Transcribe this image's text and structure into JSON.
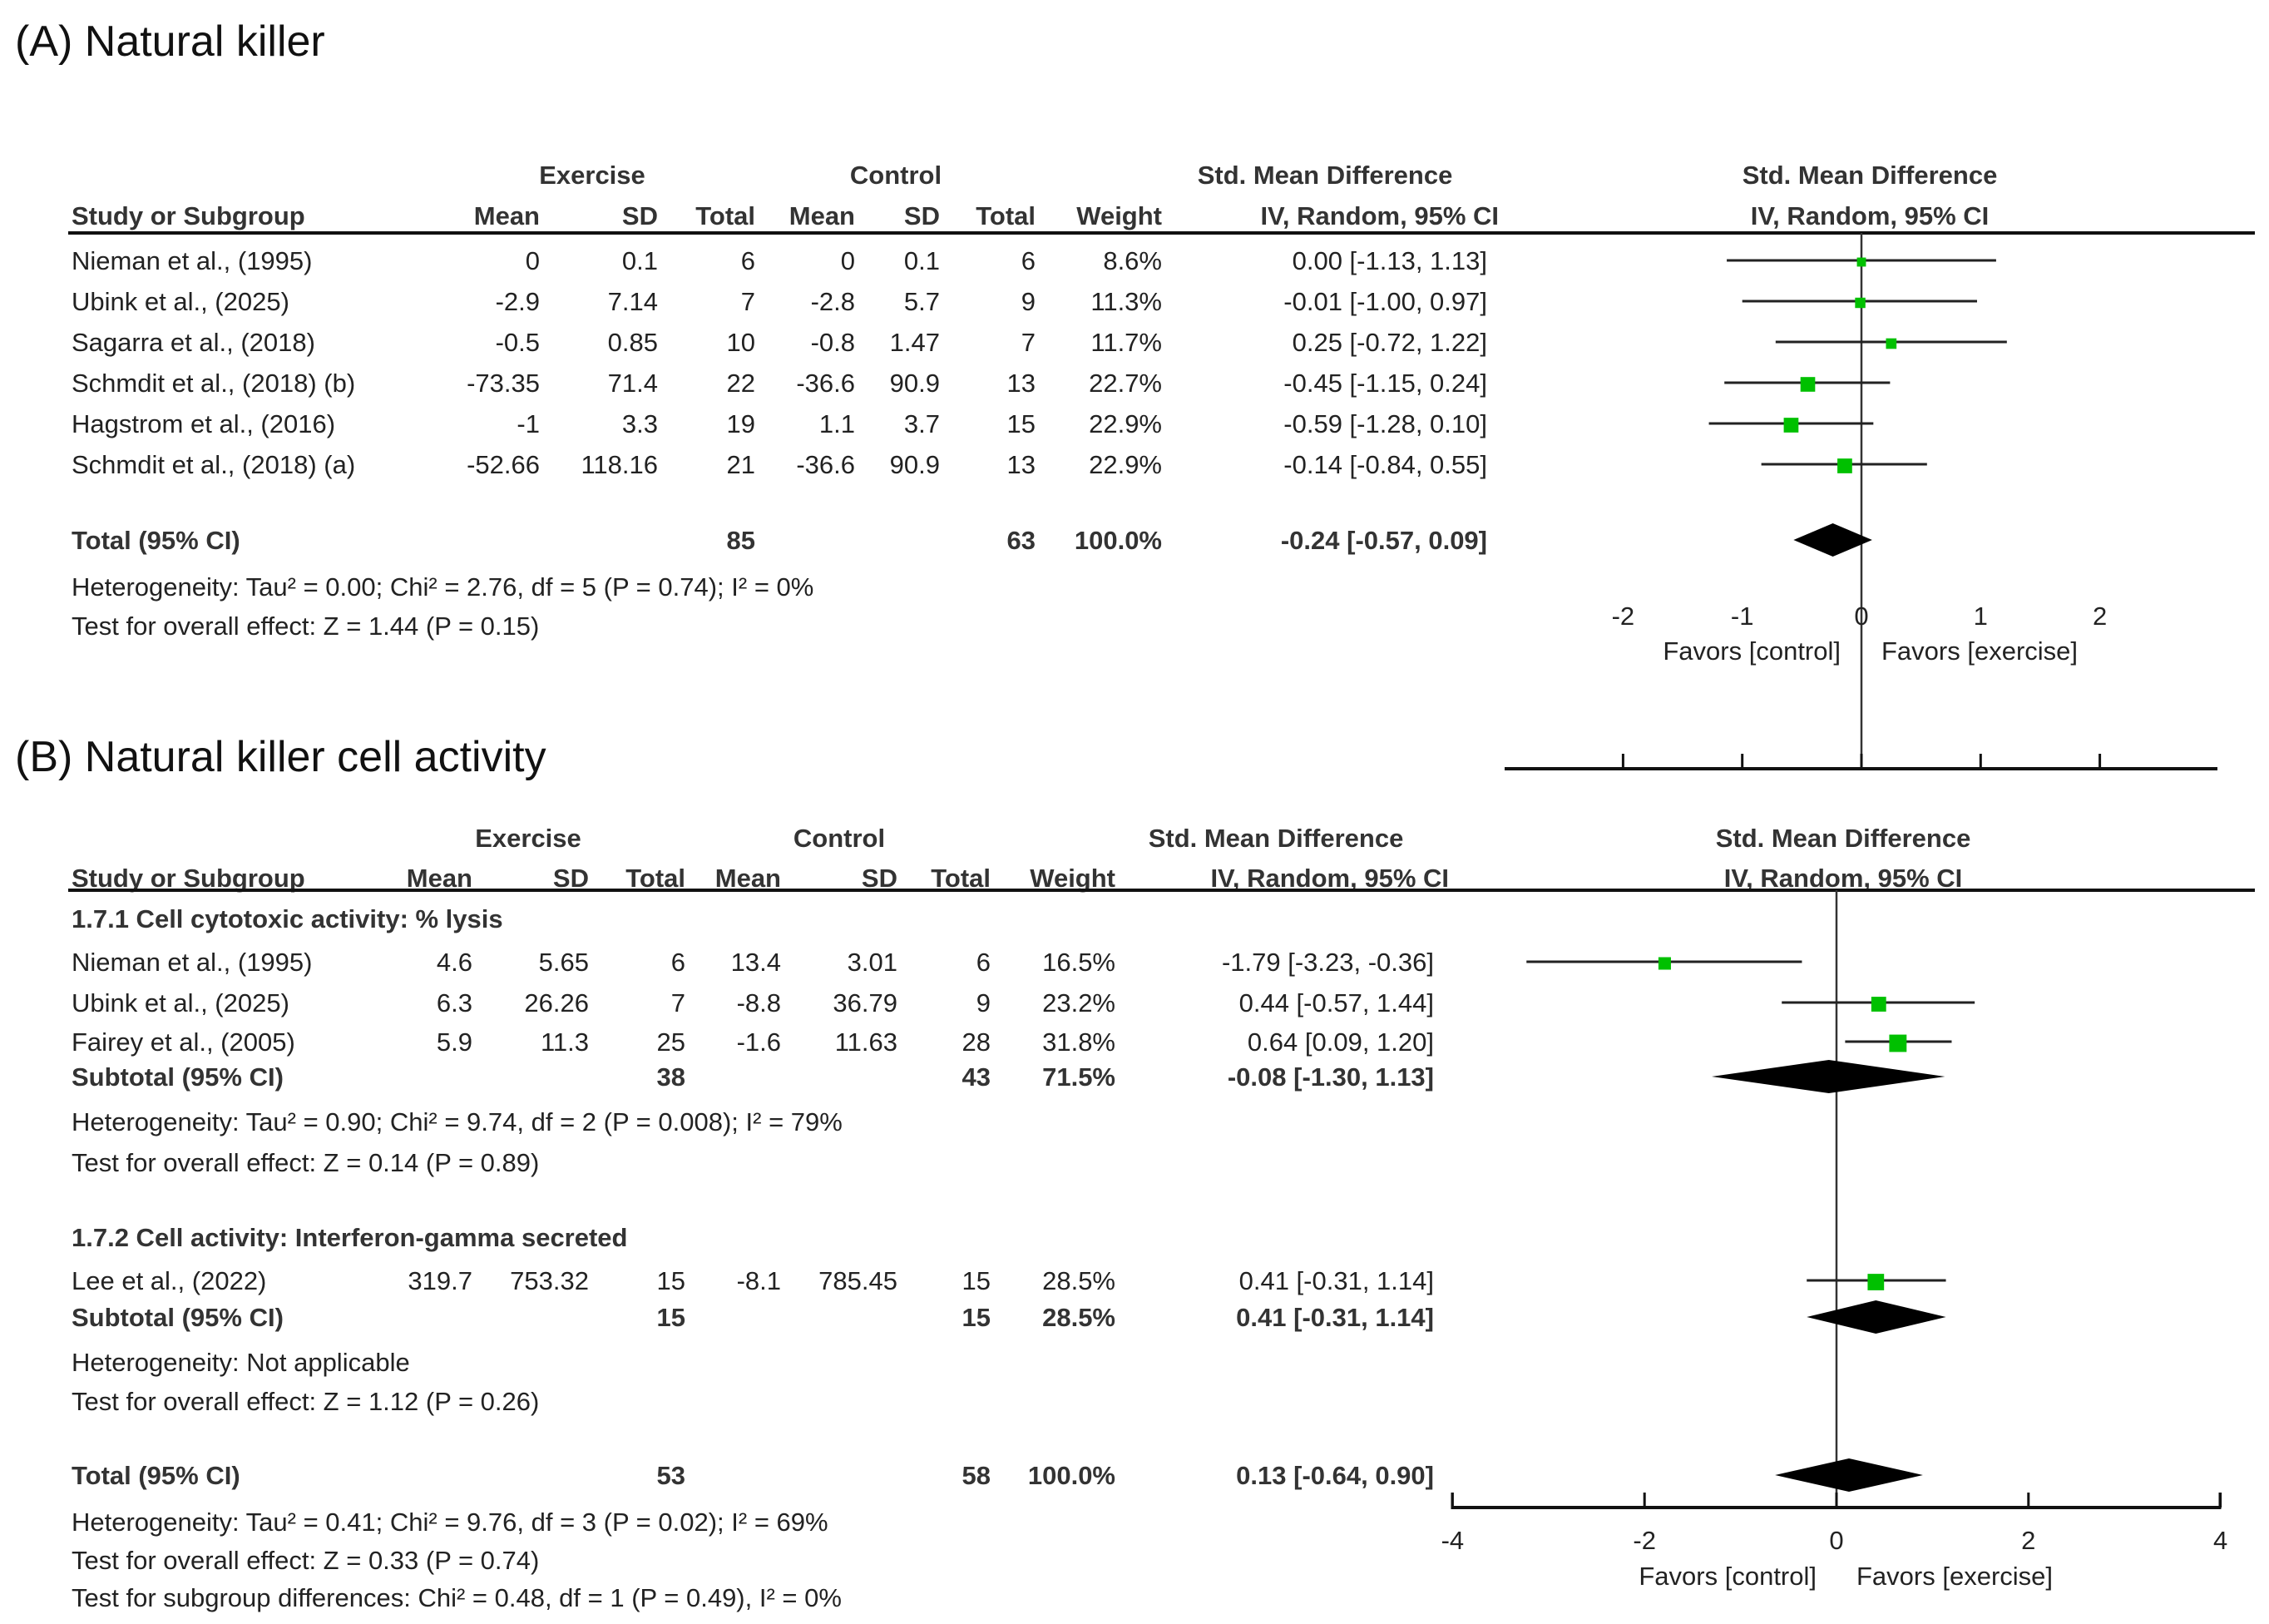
{
  "chart_data": {
    "type": "forest",
    "panels": [
      {
        "title": "(A) Natural killer",
        "headers": {
          "exercise": "Exercise",
          "control": "Control",
          "smd": "Std. Mean Difference",
          "plot_smd": "Std. Mean Difference",
          "study": "Study or Subgroup",
          "e_mean": "Mean",
          "e_sd": "SD",
          "e_total": "Total",
          "c_mean": "Mean",
          "c_sd": "SD",
          "c_total": "Total",
          "weight": "Weight",
          "ci": "IV, Random, 95% CI",
          "plot_ci": "IV, Random, 95% CI"
        },
        "axis": {
          "range": [
            -3,
            3
          ],
          "ticks": [
            -2,
            -1,
            0,
            1,
            2
          ],
          "favors_left": "Favors [control]",
          "favors_right": "Favors [exercise]"
        },
        "rows": [
          {
            "kind": "study",
            "study": "Nieman et al., (1995)",
            "e_mean": "0",
            "e_sd": "0.1",
            "e_total": "6",
            "c_mean": "0",
            "c_sd": "0.1",
            "c_total": "6",
            "weight": "8.6%",
            "ci": "0.00 [-1.13, 1.13]",
            "w": 8.6,
            "smd": 0.0,
            "lo": -1.13,
            "hi": 1.13
          },
          {
            "kind": "study",
            "study": "Ubink et al., (2025)",
            "e_mean": "-2.9",
            "e_sd": "7.14",
            "e_total": "7",
            "c_mean": "-2.8",
            "c_sd": "5.7",
            "c_total": "9",
            "weight": "11.3%",
            "ci": "-0.01 [-1.00, 0.97]",
            "w": 11.3,
            "smd": -0.01,
            "lo": -1.0,
            "hi": 0.97
          },
          {
            "kind": "study",
            "study": "Sagarra et al., (2018)",
            "e_mean": "-0.5",
            "e_sd": "0.85",
            "e_total": "10",
            "c_mean": "-0.8",
            "c_sd": "1.47",
            "c_total": "7",
            "weight": "11.7%",
            "ci": "0.25 [-0.72, 1.22]",
            "w": 11.7,
            "smd": 0.25,
            "lo": -0.72,
            "hi": 1.22
          },
          {
            "kind": "study",
            "study": "Schmdit et al., (2018) (b)",
            "e_mean": "-73.35",
            "e_sd": "71.4",
            "e_total": "22",
            "c_mean": "-36.6",
            "c_sd": "90.9",
            "c_total": "13",
            "weight": "22.7%",
            "ci": "-0.45 [-1.15, 0.24]",
            "w": 22.7,
            "smd": -0.45,
            "lo": -1.15,
            "hi": 0.24
          },
          {
            "kind": "study",
            "study": "Hagstrom et al., (2016)",
            "e_mean": "-1",
            "e_sd": "3.3",
            "e_total": "19",
            "c_mean": "1.1",
            "c_sd": "3.7",
            "c_total": "15",
            "weight": "22.9%",
            "ci": "-0.59 [-1.28, 0.10]",
            "w": 22.9,
            "smd": -0.59,
            "lo": -1.28,
            "hi": 0.1
          },
          {
            "kind": "study",
            "study": "Schmdit et al., (2018) (a)",
            "e_mean": "-52.66",
            "e_sd": "118.16",
            "e_total": "21",
            "c_mean": "-36.6",
            "c_sd": "90.9",
            "c_total": "13",
            "weight": "22.9%",
            "ci": "-0.14 [-0.84, 0.55]",
            "w": 22.9,
            "smd": -0.14,
            "lo": -0.84,
            "hi": 0.55
          },
          {
            "kind": "total",
            "study": "Total (95% CI)",
            "e_total": "85",
            "c_total": "63",
            "weight": "100.0%",
            "ci": "-0.24 [-0.57, 0.09]",
            "smd": -0.24,
            "lo": -0.57,
            "hi": 0.09
          },
          {
            "kind": "note",
            "study": "Heterogeneity: Tau² = 0.00; Chi² = 2.76, df = 5 (P = 0.74); I² = 0%"
          },
          {
            "kind": "note",
            "study": "Test for overall effect: Z = 1.44 (P = 0.15)"
          }
        ]
      },
      {
        "title": "(B) Natural killer cell activity",
        "headers": {
          "exercise": "Exercise",
          "control": "Control",
          "smd": "Std. Mean Difference",
          "plot_smd": "Std. Mean Difference",
          "study": "Study or Subgroup",
          "e_mean": "Mean",
          "e_sd": "SD",
          "e_total": "Total",
          "c_mean": "Mean",
          "c_sd": "SD",
          "c_total": "Total",
          "weight": "Weight",
          "ci": "IV, Random, 95% CI",
          "plot_ci": "IV, Random, 95% CI"
        },
        "axis": {
          "range": [
            -4,
            4
          ],
          "ticks": [
            -4,
            -2,
            0,
            2,
            4
          ],
          "favors_left": "Favors [control]",
          "favors_right": "Favors [exercise]"
        },
        "rows": [
          {
            "kind": "group",
            "study": "1.7.1 Cell cytotoxic activity: % lysis"
          },
          {
            "kind": "study",
            "study": "Nieman et al., (1995)",
            "e_mean": "4.6",
            "e_sd": "5.65",
            "e_total": "6",
            "c_mean": "13.4",
            "c_sd": "3.01",
            "c_total": "6",
            "weight": "16.5%",
            "ci": "-1.79 [-3.23, -0.36]",
            "w": 16.5,
            "smd": -1.79,
            "lo": -3.23,
            "hi": -0.36
          },
          {
            "kind": "study",
            "study": "Ubink et al., (2025)",
            "e_mean": "6.3",
            "e_sd": "26.26",
            "e_total": "7",
            "c_mean": "-8.8",
            "c_sd": "36.79",
            "c_total": "9",
            "weight": "23.2%",
            "ci": "0.44 [-0.57, 1.44]",
            "w": 23.2,
            "smd": 0.44,
            "lo": -0.57,
            "hi": 1.44
          },
          {
            "kind": "study",
            "study": "Fairey et al., (2005)",
            "e_mean": "5.9",
            "e_sd": "11.3",
            "e_total": "25",
            "c_mean": "-1.6",
            "c_sd": "11.63",
            "c_total": "28",
            "weight": "31.8%",
            "ci": "0.64 [0.09, 1.20]",
            "w": 31.8,
            "smd": 0.64,
            "lo": 0.09,
            "hi": 1.2
          },
          {
            "kind": "total",
            "study": "Subtotal (95% CI)",
            "e_total": "38",
            "c_total": "43",
            "weight": "71.5%",
            "ci": "-0.08 [-1.30, 1.13]",
            "smd": -0.08,
            "lo": -1.3,
            "hi": 1.13
          },
          {
            "kind": "note",
            "study": "Heterogeneity: Tau² = 0.90; Chi² = 9.74, df = 2 (P = 0.008); I² = 79%"
          },
          {
            "kind": "note",
            "study": "Test for overall effect: Z = 0.14 (P = 0.89)"
          },
          {
            "kind": "group",
            "study": "1.7.2 Cell activity: Interferon-gamma secreted"
          },
          {
            "kind": "study",
            "study": "Lee et al., (2022)",
            "e_mean": "319.7",
            "e_sd": "753.32",
            "e_total": "15",
            "c_mean": "-8.1",
            "c_sd": "785.45",
            "c_total": "15",
            "weight": "28.5%",
            "ci": "0.41 [-0.31, 1.14]",
            "w": 28.5,
            "smd": 0.41,
            "lo": -0.31,
            "hi": 1.14
          },
          {
            "kind": "total",
            "study": "Subtotal (95% CI)",
            "e_total": "15",
            "c_total": "15",
            "weight": "28.5%",
            "ci": "0.41 [-0.31, 1.14]",
            "smd": 0.41,
            "lo": -0.31,
            "hi": 1.14
          },
          {
            "kind": "note",
            "study": "Heterogeneity: Not applicable"
          },
          {
            "kind": "note",
            "study": "Test for overall effect: Z = 1.12 (P = 0.26)"
          },
          {
            "kind": "total",
            "study": "Total (95% CI)",
            "e_total": "53",
            "c_total": "58",
            "weight": "100.0%",
            "ci": "0.13 [-0.64, 0.90]",
            "smd": 0.13,
            "lo": -0.64,
            "hi": 0.9
          },
          {
            "kind": "note",
            "study": "Heterogeneity: Tau² = 0.41; Chi² = 9.76, df = 3 (P = 0.02); I² = 69%"
          },
          {
            "kind": "note",
            "study": "Test for overall effect: Z = 0.33 (P = 0.74)"
          },
          {
            "kind": "note",
            "study": "Test for subgroup differences: Chi² = 0.48, df = 1 (P = 0.49), I² = 0%"
          }
        ]
      }
    ],
    "colors": {
      "marker": "#00c000",
      "line": "#222222",
      "diamond": "#000000"
    }
  }
}
